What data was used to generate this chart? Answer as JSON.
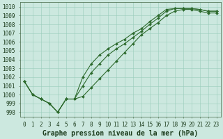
{
  "line1_y": [
    1001.5,
    1000.0,
    999.5,
    999.0,
    998.0,
    999.5,
    999.5,
    1002.0,
    1003.5,
    1004.5,
    1005.2,
    1005.8,
    1006.3,
    1007.0,
    1007.5,
    1008.3,
    1009.0,
    1009.7,
    1009.8,
    1009.8,
    1009.8,
    1009.7,
    1009.5,
    1009.5
  ],
  "line2_y": [
    1001.5,
    1000.0,
    999.5,
    999.0,
    998.0,
    999.5,
    999.5,
    1001.0,
    1002.5,
    1003.5,
    1004.5,
    1005.2,
    1005.8,
    1006.5,
    1007.2,
    1008.0,
    1008.7,
    1009.5,
    1009.8,
    1009.8,
    1009.8,
    1009.7,
    1009.5,
    1009.5
  ],
  "line3_y": [
    1001.5,
    1000.0,
    999.5,
    999.0,
    998.0,
    999.5,
    999.5,
    999.8,
    1000.8,
    1001.8,
    1002.8,
    1003.8,
    1004.8,
    1005.8,
    1006.8,
    1007.5,
    1008.2,
    1009.0,
    1009.5,
    1009.7,
    1009.7,
    1009.5,
    1009.3,
    1009.3
  ],
  "x": [
    0,
    1,
    2,
    3,
    4,
    5,
    6,
    7,
    8,
    9,
    10,
    11,
    12,
    13,
    14,
    15,
    16,
    17,
    18,
    19,
    20,
    21,
    22,
    23
  ],
  "ylim_min": 997.5,
  "ylim_max": 1010.5,
  "yticks": [
    998,
    999,
    1000,
    1001,
    1002,
    1003,
    1004,
    1005,
    1006,
    1007,
    1008,
    1009,
    1010
  ],
  "xticks": [
    0,
    1,
    2,
    3,
    4,
    5,
    6,
    7,
    8,
    9,
    10,
    11,
    12,
    13,
    14,
    15,
    16,
    17,
    18,
    19,
    20,
    21,
    22,
    23
  ],
  "line_color": "#2d6a2d",
  "marker": "D",
  "markersize": 2.0,
  "bg_color": "#cce8df",
  "grid_color": "#99ccbb",
  "xlabel": "Graphe pression niveau de la mer (hPa)",
  "xlabel_color": "#1a3a1a",
  "xlabel_fontsize": 7.0,
  "tick_fontsize": 5.5,
  "linewidth": 0.8,
  "figwidth": 3.2,
  "figheight": 2.0,
  "dpi": 100
}
